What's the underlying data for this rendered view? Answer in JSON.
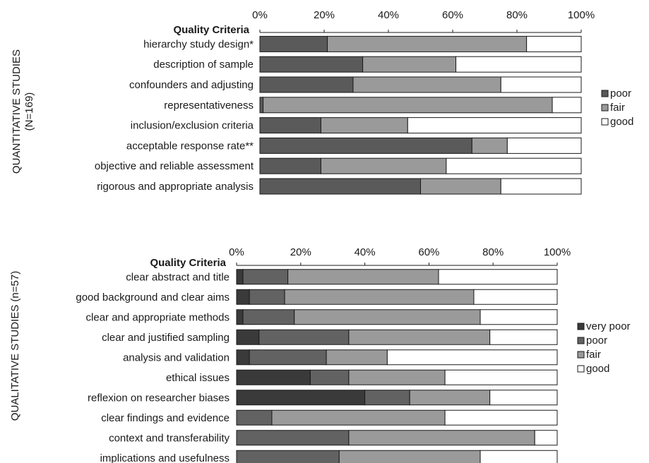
{
  "chart_data": [
    {
      "type": "bar",
      "stacked": true,
      "orientation": "horizontal",
      "title": "Quality Criteria",
      "side_label": "QUANTITATIVE STUDIES",
      "side_sublabel": "(N=169)",
      "xlim": [
        0,
        100
      ],
      "tick_labels": [
        "0%",
        "20%",
        "40%",
        "60%",
        "80%",
        "100%"
      ],
      "legend_position": "right",
      "categories": [
        "hierarchy study design*",
        "description of sample",
        "confounders and adjusting",
        "representativeness",
        "inclusion/exclusion criteria",
        "acceptable response rate**",
        "objective and reliable assessment",
        "rigorous and appropriate analysis"
      ],
      "series": [
        {
          "name": "poor",
          "color": "#5a5a5a",
          "values": [
            21,
            32,
            29,
            1,
            19,
            66,
            19,
            50
          ]
        },
        {
          "name": "fair",
          "color": "#9a9a9a",
          "values": [
            62,
            29,
            46,
            90,
            27,
            11,
            39,
            25
          ]
        },
        {
          "name": "good",
          "color": "#ffffff",
          "values": [
            17,
            39,
            25,
            9,
            54,
            23,
            42,
            25
          ]
        }
      ]
    },
    {
      "type": "bar",
      "stacked": true,
      "orientation": "horizontal",
      "title": "Quality Criteria",
      "side_label": "QUALITATIVE STUDIES (n=57)",
      "xlim": [
        0,
        100
      ],
      "tick_labels": [
        "0%",
        "20%",
        "40%",
        "60%",
        "80%",
        "100%"
      ],
      "legend_position": "right",
      "categories": [
        "clear abstract and title",
        "good background and clear aims",
        "clear and appropriate methods",
        "clear and justified sampling",
        "analysis and validation",
        "ethical issues",
        "reflexion on researcher biases",
        "clear findings and evidence",
        "context and transferability",
        "implications and usefulness"
      ],
      "series": [
        {
          "name": "very poor",
          "color": "#3a3a3a",
          "values": [
            2,
            4,
            2,
            7,
            4,
            23,
            40,
            0,
            0,
            0
          ]
        },
        {
          "name": "poor",
          "color": "#626262",
          "values": [
            14,
            11,
            16,
            28,
            24,
            12,
            14,
            11,
            35,
            32
          ]
        },
        {
          "name": "fair",
          "color": "#9a9a9a",
          "values": [
            47,
            59,
            58,
            44,
            19,
            30,
            25,
            54,
            58,
            44
          ]
        },
        {
          "name": "good",
          "color": "#ffffff",
          "values": [
            37,
            26,
            24,
            21,
            53,
            35,
            21,
            35,
            7,
            24
          ]
        }
      ]
    }
  ]
}
